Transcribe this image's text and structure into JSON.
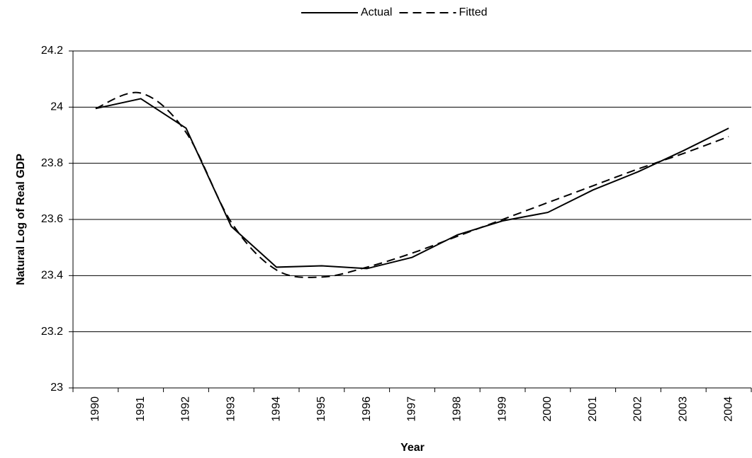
{
  "chart_data": {
    "type": "line",
    "x_label": "Year",
    "y_label": "Natural Log of Real GDP",
    "categories": [
      "1990",
      "1991",
      "1992",
      "1993",
      "1994",
      "1995",
      "1996",
      "1997",
      "1998",
      "1999",
      "2000",
      "2001",
      "2002",
      "2003",
      "2004"
    ],
    "series": [
      {
        "name": "Actual",
        "color": "#000000",
        "dash": "solid",
        "smooth": false,
        "values": [
          23.995,
          24.03,
          23.925,
          23.575,
          23.43,
          23.435,
          23.425,
          23.465,
          23.545,
          23.595,
          23.625,
          23.705,
          23.77,
          23.845,
          23.925
        ]
      },
      {
        "name": "Fitted",
        "color": "#000000",
        "dash": "dashed",
        "smooth": true,
        "values": [
          23.995,
          24.05,
          23.91,
          23.59,
          23.42,
          23.395,
          23.43,
          23.48,
          23.54,
          23.6,
          23.66,
          23.72,
          23.78,
          23.835,
          23.895
        ]
      }
    ],
    "ylim": [
      23,
      24.2
    ],
    "yticks": [
      23,
      23.2,
      23.4,
      23.6,
      23.8,
      24,
      24.2
    ],
    "grid": true,
    "legend": "top"
  }
}
